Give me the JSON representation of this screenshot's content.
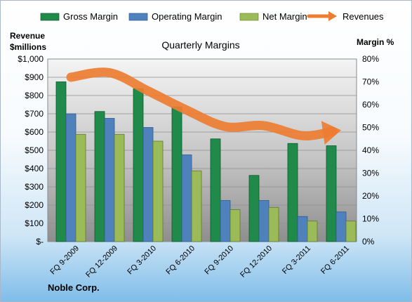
{
  "chart_data": {
    "type": "bar",
    "title": "Quarterly Margins",
    "company": "Noble Corp.",
    "left_axis_label_line1": "Revenue",
    "left_axis_label_line2": "$millions",
    "right_axis_label": "Margin %",
    "categories": [
      "FQ 9-2009",
      "FQ 12-2009",
      "FQ 3-2010",
      "FQ 6-2010",
      "FQ 9-2010",
      "FQ 12-2010",
      "FQ 3-2011",
      "FQ 6-2011"
    ],
    "series": [
      {
        "name": "Gross Margin",
        "type": "bar",
        "axis": "right",
        "color": "#1f8a4a",
        "values": [
          70,
          57,
          67,
          59,
          45,
          29,
          43,
          42
        ]
      },
      {
        "name": "Operating Margin",
        "type": "bar",
        "axis": "right",
        "color": "#4f81bd",
        "values": [
          56,
          54,
          50,
          38,
          18,
          18,
          11,
          13
        ]
      },
      {
        "name": "Net Margin",
        "type": "bar",
        "axis": "right",
        "color": "#9bbb59",
        "values": [
          47,
          47,
          44,
          31,
          14,
          15,
          9,
          9
        ]
      },
      {
        "name": "Revenues",
        "type": "line",
        "axis": "left",
        "color": "#ed7d31",
        "values": [
          900,
          925,
          825,
          720,
          630,
          635,
          580,
          610
        ]
      }
    ],
    "left_axis": {
      "ylim": [
        0,
        1000
      ],
      "ticks": [
        "$-",
        "$100",
        "$200",
        "$300",
        "$400",
        "$500",
        "$600",
        "$700",
        "$800",
        "$900",
        "$1,000"
      ]
    },
    "right_axis": {
      "ylim": [
        0,
        80
      ],
      "ticks": [
        "0%",
        "10%",
        "20%",
        "30%",
        "40%",
        "50%",
        "60%",
        "70%",
        "80%"
      ]
    },
    "legend_position": "top",
    "grid": true
  }
}
